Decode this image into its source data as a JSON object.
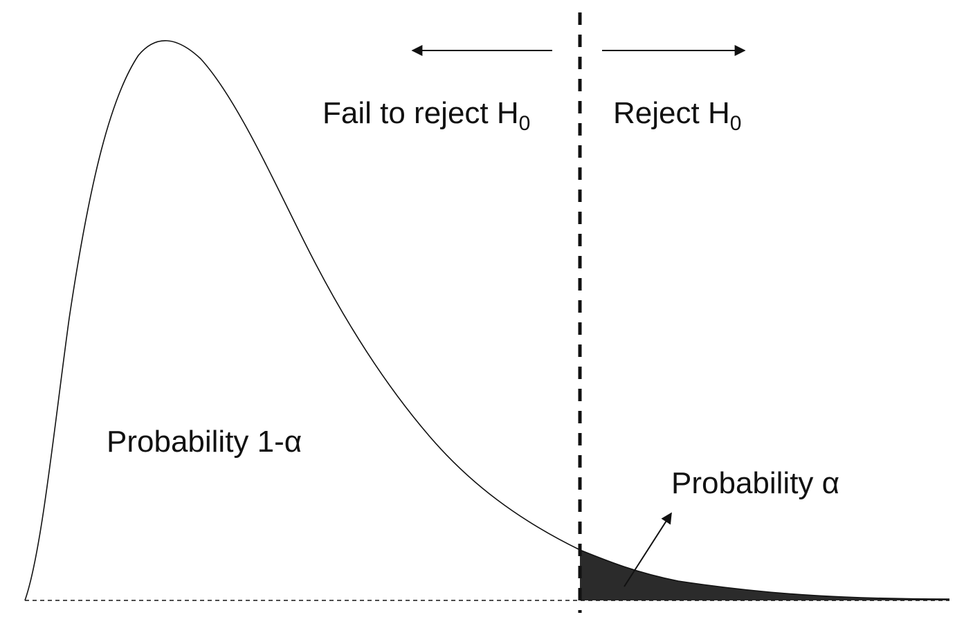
{
  "labels": {
    "fail_to_reject": "Fail to reject H",
    "fail_to_reject_sub": "0",
    "reject": "Reject H",
    "reject_sub": "0",
    "prob_accept": "Probability 1-α",
    "prob_reject": "Probability α"
  },
  "colors": {
    "line": "#111111",
    "tail_fill": "#2b2b2b",
    "background": "#ffffff"
  }
}
